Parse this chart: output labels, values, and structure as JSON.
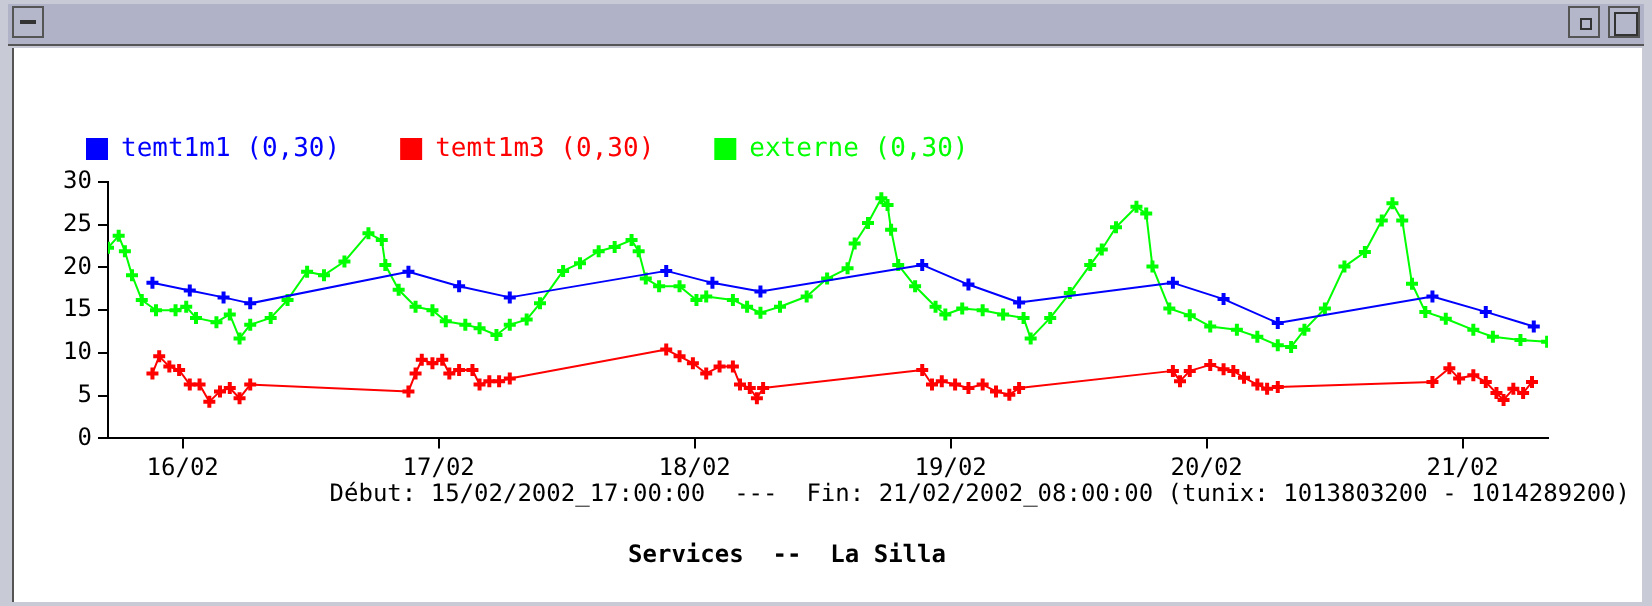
{
  "chart_data": {
    "type": "line",
    "title": "Services  --  La Silla",
    "annotations": [
      "Début: 15/02/2002_17:00:00  ---  Fin: 21/02/2002_08:00:00 (tunix: 1013803200 - 1014289200)"
    ],
    "xlim": [
      "2002-02-15T17:00",
      "2002-02-21T08:00"
    ],
    "xticks": [
      {
        "value": "2002-02-16",
        "label": "16/02"
      },
      {
        "value": "2002-02-17",
        "label": "17/02"
      },
      {
        "value": "2002-02-18",
        "label": "18/02"
      },
      {
        "value": "2002-02-19",
        "label": "19/02"
      },
      {
        "value": "2002-02-20",
        "label": "20/02"
      },
      {
        "value": "2002-02-21",
        "label": "21/02"
      }
    ],
    "ylim": [
      0,
      30
    ],
    "yticks": [
      0,
      5,
      10,
      15,
      20,
      25,
      30
    ],
    "grid": false,
    "legend": "top left",
    "marker": "cross",
    "line_style": "solid",
    "series": [
      {
        "name": "temt1m1 (0,30)",
        "color": "#0000ff",
        "x": [
          "2002-02-15T21:10",
          "2002-02-16T00:40",
          "2002-02-16T03:50",
          "2002-02-16T06:20",
          "2002-02-16T21:10",
          "2002-02-17T01:55",
          "2002-02-17T06:40",
          "2002-02-17T21:20",
          "2002-02-18T01:40",
          "2002-02-18T06:10",
          "2002-02-18T21:20",
          "2002-02-19T01:40",
          "2002-02-19T06:25",
          "2002-02-19T20:50",
          "2002-02-20T01:35",
          "2002-02-20T06:40",
          "2002-02-20T21:10",
          "2002-02-21T02:10",
          "2002-02-21T06:40"
        ],
        "values": [
          18.2,
          17.3,
          16.5,
          15.8,
          19.5,
          17.8,
          16.5,
          19.6,
          18.2,
          17.2,
          20.3,
          18.0,
          15.9,
          18.2,
          16.3,
          13.5,
          16.6,
          14.8,
          13.1
        ]
      },
      {
        "name": "temt1m3 (0,30)",
        "color": "#ff0000",
        "x": [
          "2002-02-15T21:10",
          "2002-02-15T21:48",
          "2002-02-15T22:45",
          "2002-02-15T23:40",
          "2002-02-16T00:40",
          "2002-02-16T01:35",
          "2002-02-16T02:30",
          "2002-02-16T03:30",
          "2002-02-16T04:25",
          "2002-02-16T05:20",
          "2002-02-16T06:20",
          "2002-02-16T21:10",
          "2002-02-16T21:50",
          "2002-02-16T22:25",
          "2002-02-16T23:25",
          "2002-02-17T00:20",
          "2002-02-17T01:00",
          "2002-02-17T01:55",
          "2002-02-17T03:10",
          "2002-02-17T03:50",
          "2002-02-17T04:45",
          "2002-02-17T05:40",
          "2002-02-17T06:40",
          "2002-02-17T21:20",
          "2002-02-17T22:35",
          "2002-02-17T23:50",
          "2002-02-18T01:05",
          "2002-02-18T02:20",
          "2002-02-18T03:35",
          "2002-02-18T04:15",
          "2002-02-18T05:10",
          "2002-02-18T05:50",
          "2002-02-18T06:25",
          "2002-02-18T21:20",
          "2002-02-18T22:15",
          "2002-02-18T23:10",
          "2002-02-19T00:25",
          "2002-02-19T01:40",
          "2002-02-19T03:00",
          "2002-02-19T04:15",
          "2002-02-19T05:30",
          "2002-02-19T06:25",
          "2002-02-19T20:50",
          "2002-02-19T21:30",
          "2002-02-19T22:25",
          "2002-02-20T00:20",
          "2002-02-20T01:35",
          "2002-02-20T02:30",
          "2002-02-20T03:30",
          "2002-02-20T04:45",
          "2002-02-20T05:40",
          "2002-02-20T06:40",
          "2002-02-20T21:10",
          "2002-02-20T22:45",
          "2002-02-20T23:40",
          "2002-02-21T01:00",
          "2002-02-21T02:10",
          "2002-02-21T03:10",
          "2002-02-21T03:50",
          "2002-02-21T04:45",
          "2002-02-21T05:40",
          "2002-02-21T06:30"
        ],
        "values": [
          7.6,
          9.6,
          8.4,
          8.0,
          6.3,
          6.3,
          4.3,
          5.5,
          5.9,
          4.7,
          6.3,
          5.5,
          7.6,
          9.2,
          8.8,
          9.2,
          7.6,
          8.0,
          8.0,
          6.3,
          6.7,
          6.7,
          7.0,
          10.4,
          9.6,
          8.8,
          7.6,
          8.4,
          8.4,
          6.3,
          5.9,
          4.7,
          5.9,
          8.0,
          6.3,
          6.7,
          6.3,
          5.9,
          6.3,
          5.5,
          5.1,
          5.9,
          7.9,
          6.7,
          7.9,
          8.6,
          8.1,
          7.9,
          7.1,
          6.3,
          5.8,
          6.0,
          6.6,
          8.2,
          7.0,
          7.4,
          6.6,
          5.3,
          4.5,
          5.8,
          5.3,
          6.6
        ]
      },
      {
        "name": "externe (0,30)",
        "color": "#00ff00",
        "x": [
          "2002-02-15T17:00",
          "2002-02-15T18:00",
          "2002-02-15T18:35",
          "2002-02-15T19:15",
          "2002-02-15T20:10",
          "2002-02-15T21:30",
          "2002-02-15T23:20",
          "2002-02-16T00:20",
          "2002-02-16T01:15",
          "2002-02-16T03:10",
          "2002-02-16T04:25",
          "2002-02-16T05:20",
          "2002-02-16T06:20",
          "2002-02-16T08:15",
          "2002-02-16T09:50",
          "2002-02-16T11:40",
          "2002-02-16T13:15",
          "2002-02-16T15:10",
          "2002-02-16T17:25",
          "2002-02-16T18:40",
          "2002-02-16T19:00",
          "2002-02-16T20:15",
          "2002-02-16T21:50",
          "2002-02-16T23:25",
          "2002-02-17T00:40",
          "2002-02-17T02:30",
          "2002-02-17T03:50",
          "2002-02-17T05:25",
          "2002-02-17T06:40",
          "2002-02-17T08:15",
          "2002-02-17T09:30",
          "2002-02-17T11:40",
          "2002-02-17T13:15",
          "2002-02-17T15:00",
          "2002-02-17T16:30",
          "2002-02-17T18:05",
          "2002-02-17T18:45",
          "2002-02-17T19:25",
          "2002-02-17T20:40",
          "2002-02-17T22:35",
          "2002-02-18T00:10",
          "2002-02-18T01:05",
          "2002-02-18T03:35",
          "2002-02-18T04:55",
          "2002-02-18T06:10",
          "2002-02-18T08:00",
          "2002-02-18T10:30",
          "2002-02-18T12:25",
          "2002-02-18T14:20",
          "2002-02-18T15:00",
          "2002-02-18T16:15",
          "2002-02-18T17:30",
          "2002-02-18T18:05",
          "2002-02-18T18:25",
          "2002-02-18T19:05",
          "2002-02-18T20:40",
          "2002-02-18T22:35",
          "2002-02-18T23:30",
          "2002-02-19T01:05",
          "2002-02-19T03:00",
          "2002-02-19T04:55",
          "2002-02-19T06:50",
          "2002-02-19T07:30",
          "2002-02-19T09:20",
          "2002-02-19T11:10",
          "2002-02-19T13:05",
          "2002-02-19T14:10",
          "2002-02-19T15:30",
          "2002-02-19T17:25",
          "2002-02-19T18:20",
          "2002-02-19T18:55",
          "2002-02-19T20:30",
          "2002-02-19T22:25",
          "2002-02-20T00:20",
          "2002-02-20T02:50",
          "2002-02-20T04:45",
          "2002-02-20T06:40",
          "2002-02-20T07:55",
          "2002-02-20T09:10",
          "2002-02-20T11:05",
          "2002-02-20T12:55",
          "2002-02-20T14:50",
          "2002-02-20T16:25",
          "2002-02-20T17:25",
          "2002-02-20T18:20",
          "2002-02-20T19:15",
          "2002-02-20T20:30",
          "2002-02-20T22:25",
          "2002-02-21T01:00",
          "2002-02-21T02:50",
          "2002-02-21T05:25",
          "2002-02-21T07:55"
        ],
        "values": [
          22.3,
          23.7,
          21.9,
          19.1,
          16.2,
          15.0,
          15.0,
          15.4,
          14.1,
          13.6,
          14.5,
          11.7,
          13.3,
          14.1,
          16.2,
          19.5,
          19.1,
          20.7,
          24.0,
          23.2,
          20.3,
          17.4,
          15.4,
          15.0,
          13.7,
          13.3,
          12.9,
          12.1,
          13.3,
          13.9,
          15.8,
          19.6,
          20.5,
          21.9,
          22.4,
          23.2,
          21.9,
          18.7,
          17.8,
          17.8,
          16.2,
          16.6,
          16.2,
          15.4,
          14.7,
          15.4,
          16.6,
          18.7,
          19.9,
          22.8,
          25.2,
          28.1,
          27.3,
          24.4,
          20.3,
          17.8,
          15.4,
          14.5,
          15.2,
          15.0,
          14.5,
          14.1,
          11.7,
          14.1,
          17.0,
          20.3,
          22.1,
          24.7,
          27.1,
          26.3,
          20.1,
          15.2,
          14.4,
          13.1,
          12.7,
          11.9,
          10.9,
          10.7,
          12.7,
          15.2,
          20.1,
          21.8,
          25.5,
          27.5,
          25.5,
          18.1,
          14.8,
          14.0,
          12.7,
          11.9,
          11.5,
          11.3
        ]
      }
    ]
  }
}
